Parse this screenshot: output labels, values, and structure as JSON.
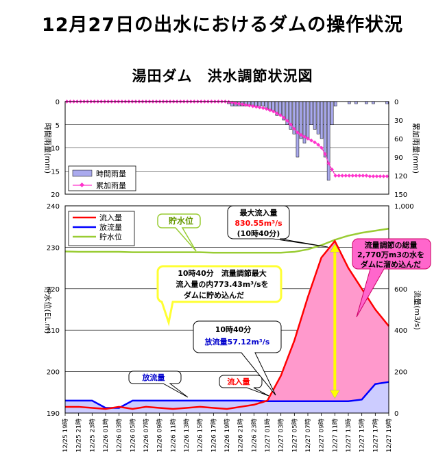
{
  "title": "12月27日の出水におけるダムの操作状況",
  "subtitle": "湯田ダム　洪水調節状況図",
  "colors": {
    "rain_bar": "#aaaaee",
    "cum_rain": "#ff33cc",
    "inflow": "#ff0000",
    "outflow": "#0000ff",
    "reservoir": "#99cc33",
    "fill_area": "#ff99cc",
    "outflow_area": "#ccccff",
    "arrow": "#ffff00"
  },
  "chart_data": [
    {
      "type": "bar",
      "name": "rainfall",
      "ylabel_left": "時間雨量(mm)",
      "ylabel_right": "累加雨量(mm)",
      "ylim_left": [
        20,
        0
      ],
      "ylim_right": [
        150,
        0
      ],
      "yticks_left": [
        "0",
        "5",
        "10",
        "15",
        "20"
      ],
      "yticks_right": [
        "0",
        "30",
        "60",
        "90",
        "120",
        "150"
      ],
      "legend": [
        "時間雨量",
        "累加雨量"
      ],
      "legend_position": "bottom-left",
      "grid": true,
      "series": [
        {
          "name": "時間雨量",
          "values": [
            0,
            0,
            0,
            0,
            0,
            0,
            0,
            0,
            0,
            0,
            0,
            0,
            0,
            0,
            0,
            0,
            0,
            0,
            0,
            0,
            0,
            0,
            0,
            0,
            0,
            0,
            0,
            0,
            0,
            0,
            0,
            0,
            0,
            0,
            0,
            0,
            0,
            0,
            0,
            0,
            0,
            0,
            0,
            0,
            0,
            0,
            0,
            0.5,
            1,
            1,
            1,
            1,
            1,
            1,
            1,
            1,
            1,
            1,
            1.5,
            2,
            2,
            3,
            3,
            4,
            5,
            6,
            7,
            12,
            8,
            9,
            8,
            5,
            6,
            7,
            8,
            12,
            17,
            5,
            1,
            0,
            0,
            0,
            0.5,
            0,
            0.5,
            0,
            0,
            0.5,
            0,
            0.5,
            0,
            0,
            0,
            0.5
          ]
        },
        {
          "name": "累加雨量",
          "values": [
            0,
            0,
            0,
            0,
            0,
            0,
            0,
            0,
            0,
            0,
            0,
            0,
            0,
            0,
            0,
            0,
            0,
            0,
            0,
            0,
            0,
            0,
            0,
            0,
            0,
            0,
            0,
            0,
            0,
            0,
            0,
            0,
            0,
            0,
            0,
            0,
            0,
            0,
            0,
            0,
            0,
            0,
            0,
            0,
            0,
            0,
            0,
            0.5,
            1.5,
            2.5,
            3.5,
            4.5,
            5.5,
            6.5,
            7.5,
            8.5,
            9.5,
            10.5,
            12,
            14,
            16,
            19,
            22,
            26,
            31,
            37,
            44,
            50,
            54,
            57,
            60,
            63,
            66,
            70,
            75,
            85,
            100,
            110,
            120,
            120,
            120,
            120,
            120,
            120,
            120,
            120,
            120,
            120,
            121,
            121,
            121,
            121,
            121,
            121
          ]
        }
      ]
    },
    {
      "type": "line",
      "name": "flood_control",
      "ylabel_left": "貯水位(EL.m)",
      "ylabel_right": "流量(m3/s)",
      "ylim_left": [
        190,
        240
      ],
      "ylim_right": [
        0,
        1000
      ],
      "yticks_left": [
        "190",
        "200",
        "210",
        "220",
        "230",
        "240"
      ],
      "yticks_right": [
        "0",
        "200",
        "400",
        "600",
        "800",
        "1,000"
      ],
      "legend": [
        "流入量",
        "放流量",
        "貯水位"
      ],
      "legend_position": "top-left",
      "grid": true,
      "x": [
        "12/25 19時",
        "12/25 21時",
        "12/25 23時",
        "12/26 01時",
        "12/26 03時",
        "12/26 05時",
        "12/26 07時",
        "12/26 09時",
        "12/26 11時",
        "12/26 13時",
        "12/26 15時",
        "12/26 17時",
        "12/26 19時",
        "12/26 21時",
        "12/26 23時",
        "12/27 01時",
        "12/27 03時",
        "12/27 05時",
        "12/27 07時",
        "12/27 09時",
        "12/27 11時",
        "12/27 13時",
        "12/27 15時",
        "12/27 17時",
        "12/27 19時"
      ],
      "series": [
        {
          "name": "流入量",
          "axis": "right",
          "values": [
            30,
            30,
            25,
            20,
            30,
            20,
            30,
            25,
            20,
            25,
            30,
            25,
            20,
            30,
            40,
            60,
            180,
            350,
            560,
            750,
            830,
            700,
            600,
            500,
            420
          ]
        },
        {
          "name": "放流量",
          "axis": "right",
          "values": [
            60,
            60,
            60,
            25,
            25,
            60,
            60,
            60,
            60,
            60,
            60,
            60,
            60,
            60,
            60,
            57,
            57,
            57,
            57,
            57,
            57,
            57,
            65,
            140,
            150
          ]
        },
        {
          "name": "貯水位",
          "axis": "left",
          "values": [
            229.0,
            228.9,
            228.9,
            228.9,
            228.9,
            228.8,
            228.8,
            228.8,
            228.8,
            228.8,
            228.8,
            228.7,
            228.7,
            228.7,
            228.7,
            228.7,
            228.7,
            228.9,
            229.5,
            230.5,
            231.8,
            232.8,
            233.5,
            234.0,
            234.5
          ]
        }
      ]
    }
  ],
  "annotations": {
    "reservoir_label": "貯水位",
    "max_inflow_title": "最大流入量",
    "max_inflow_value": "830.55m³/s",
    "max_inflow_time": "(10時40分)",
    "total_title": "流量調節の総量",
    "total_line1": "2,770万m3の水を",
    "total_line2": "ダムに溜め込んだ",
    "yellow_line1": "10時40分　流量調節最大",
    "yellow_line2": "流入量の内773.43m³/sを",
    "yellow_line3": "ダムに貯め込んだ",
    "outflow_time": "10時40分",
    "outflow_value": "放流量57.12m³/s",
    "outflow_label": "放流量",
    "inflow_label": "流入量"
  }
}
